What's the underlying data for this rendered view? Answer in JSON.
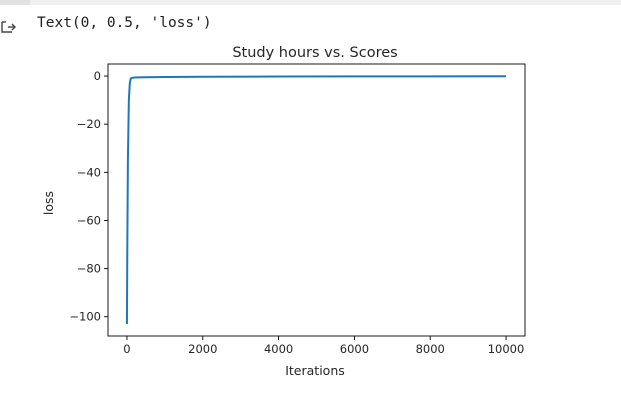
{
  "output": {
    "text": "Text(0, 0.5, 'loss')",
    "icon": "output-arrow-icon"
  },
  "chart_data": {
    "type": "line",
    "title": "Study hours vs. Scores",
    "xlabel": "Iterations",
    "ylabel": "loss",
    "xlim": [
      -500,
      10500
    ],
    "ylim": [
      -108,
      5
    ],
    "xticks": [
      0,
      2000,
      4000,
      6000,
      8000,
      10000
    ],
    "yticks": [
      0,
      -20,
      -40,
      -60,
      -80,
      -100
    ],
    "grid": false,
    "line_color": "#1f77b4",
    "series": [
      {
        "x": [
          0,
          10,
          25,
          50,
          75,
          100,
          150,
          200,
          300,
          500,
          1000,
          2000,
          4000,
          6000,
          8000,
          10000
        ],
        "values": [
          -103,
          -70,
          -35,
          -10,
          -3,
          -1,
          -0.7,
          -0.6,
          -0.55,
          -0.5,
          -0.4,
          -0.3,
          -0.2,
          -0.15,
          -0.12,
          -0.1
        ]
      }
    ]
  }
}
